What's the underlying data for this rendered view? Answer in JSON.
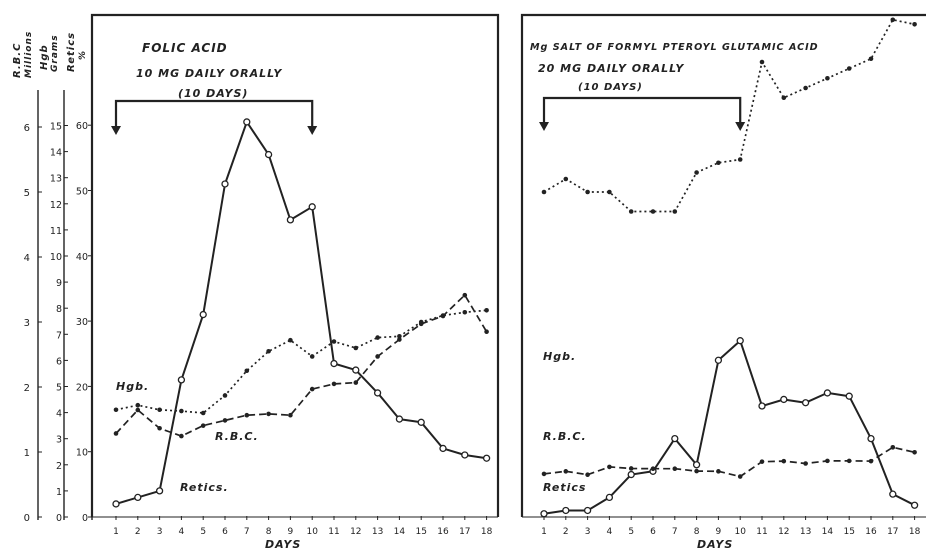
{
  "axes_left": {
    "rbc_label_1": "R.B.C",
    "rbc_label_2": "Millions",
    "hgb_label_1": "Hgb",
    "hgb_label_2": "Grams",
    "retics_label_1": "Retics",
    "retics_label_2": "%",
    "rbc_ticks": [
      "0",
      "1",
      "2",
      "3",
      "4",
      "5",
      "6"
    ],
    "hgb_ticks": [
      "0",
      "1",
      "2",
      "3",
      "4",
      "5",
      "6",
      "7",
      "8",
      "9",
      "10",
      "11",
      "12",
      "13",
      "14",
      "15"
    ],
    "retics_ticks": [
      "0",
      "10",
      "20",
      "30",
      "40",
      "50",
      "60"
    ]
  },
  "chart_data": [
    {
      "type": "line",
      "title": "FOLIC ACID",
      "subtitle_1": "10 MG DAILY ORALLY",
      "subtitle_2": "(10 DAYS)",
      "xlabel": "DAYS",
      "x": [
        1,
        2,
        3,
        4,
        5,
        6,
        7,
        8,
        9,
        10,
        11,
        12,
        13,
        14,
        15,
        16,
        17,
        18
      ],
      "x_tick_labels": [
        "1",
        "2",
        "3",
        "4",
        "5",
        "6",
        "7",
        "8",
        "9",
        "10",
        "11",
        "12",
        "13",
        "14",
        "15",
        "16",
        "17",
        "18"
      ],
      "treatment_days": [
        1,
        10
      ],
      "grid": false,
      "series": [
        {
          "name": "Retics.",
          "unit": "%",
          "style": "solid",
          "marker": "open-circle",
          "values": [
            2,
            3,
            4,
            21,
            31,
            51,
            60.5,
            55.5,
            45.5,
            47.5,
            23.5,
            22.5,
            19,
            15,
            14.5,
            10.5,
            9.5,
            9
          ]
        },
        {
          "name": "Hgb.",
          "unit": "g",
          "style": "dashed",
          "marker": "filled-dot",
          "values": [
            3.2,
            4.1,
            3.4,
            3.1,
            3.5,
            3.7,
            3.9,
            3.95,
            3.9,
            4.9,
            5.1,
            5.15,
            6.15,
            6.8,
            7.4,
            7.7,
            8.5,
            7.1
          ]
        },
        {
          "name": "R.B.C.",
          "unit": "millions",
          "style": "dotted",
          "marker": "filled-dot",
          "values": [
            1.65,
            1.72,
            1.65,
            1.63,
            1.6,
            1.87,
            2.25,
            2.55,
            2.72,
            2.47,
            2.7,
            2.6,
            2.76,
            2.78,
            3.0,
            3.1,
            3.15,
            3.18
          ]
        }
      ]
    },
    {
      "type": "line",
      "title": "Mg SALT OF FORMYL PTEROYL GLUTAMIC ACID",
      "subtitle_1": "20 MG DAILY ORALLY",
      "subtitle_2": "(10 DAYS)",
      "xlabel": "DAYS",
      "x": [
        1,
        2,
        3,
        4,
        5,
        6,
        7,
        8,
        9,
        10,
        11,
        12,
        13,
        14,
        15,
        16,
        17,
        18
      ],
      "x_tick_labels": [
        "1",
        "2",
        "3",
        "4",
        "5",
        "6",
        "7",
        "8",
        "9",
        "10",
        "11",
        "12",
        "13",
        "14",
        "15",
        "16",
        "17",
        "18"
      ],
      "treatment_days": [
        1,
        10
      ],
      "grid": false,
      "series": [
        {
          "name": "Retics",
          "unit": "%",
          "style": "solid",
          "marker": "open-circle",
          "values": [
            0.5,
            1,
            1,
            3,
            6.5,
            7,
            12,
            8,
            24,
            27,
            17,
            18,
            17.5,
            19,
            18.5,
            12,
            3.5,
            1.8
          ]
        },
        {
          "name": "Hgb.",
          "unit": "g",
          "style": "dashed",
          "marker": "filled-dot",
          "values": [
            1.65,
            1.75,
            1.62,
            1.92,
            1.86,
            1.85,
            1.85,
            1.76,
            1.75,
            1.55,
            2.12,
            2.14,
            2.05,
            2.15,
            2.15,
            2.14,
            2.67,
            2.48
          ]
        },
        {
          "name": "R.B.C.",
          "unit": "millions",
          "style": "dotted",
          "marker": "filled-dot",
          "values": [
            5,
            5.2,
            5,
            5,
            4.7,
            4.7,
            4.7,
            5.3,
            5.45,
            5.5,
            7,
            6.45,
            6.6,
            6.75,
            6.9,
            7.05,
            7.65,
            7.58
          ]
        }
      ]
    }
  ]
}
